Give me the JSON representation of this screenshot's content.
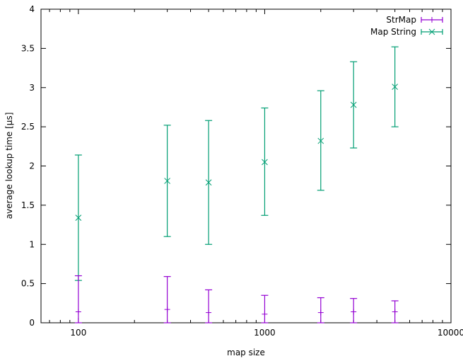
{
  "chart_data": {
    "type": "scatter",
    "xlabel": "map size",
    "ylabel": "average lookup time [µs]",
    "xscale": "log",
    "xlim": [
      63,
      10000
    ],
    "ylim": [
      0,
      4
    ],
    "xticks": [
      100,
      1000,
      10000
    ],
    "xtick_labels": [
      "100",
      "1000",
      "10000"
    ],
    "yticks": [
      0,
      0.5,
      1,
      1.5,
      2,
      2.5,
      3,
      3.5,
      4
    ],
    "ytick_labels": [
      "0",
      "0.5",
      "1",
      "1.5",
      "2",
      "2.5",
      "3",
      "3.5",
      "4"
    ],
    "grid": false,
    "legend_position": "top-right",
    "series": [
      {
        "name": "StrMap",
        "color": "#9400d3",
        "marker": "plus",
        "x": [
          100,
          300,
          500,
          1000,
          2000,
          3000,
          5000
        ],
        "y": [
          0.14,
          0.17,
          0.13,
          0.11,
          0.13,
          0.14,
          0.14
        ],
        "ylow": [
          0,
          0,
          0,
          0,
          0,
          0,
          0
        ],
        "yhigh": [
          0.6,
          0.59,
          0.42,
          0.35,
          0.32,
          0.31,
          0.28
        ]
      },
      {
        "name": "Map String",
        "color": "#009e73",
        "marker": "cross",
        "x": [
          100,
          300,
          500,
          1000,
          2000,
          3000,
          5000
        ],
        "y": [
          1.34,
          1.81,
          1.79,
          2.05,
          2.32,
          2.78,
          3.01
        ],
        "ylow": [
          0.54,
          1.1,
          1.0,
          1.37,
          1.69,
          2.23,
          2.5
        ],
        "yhigh": [
          2.14,
          2.52,
          2.58,
          2.74,
          2.96,
          3.33,
          3.52
        ]
      }
    ]
  }
}
